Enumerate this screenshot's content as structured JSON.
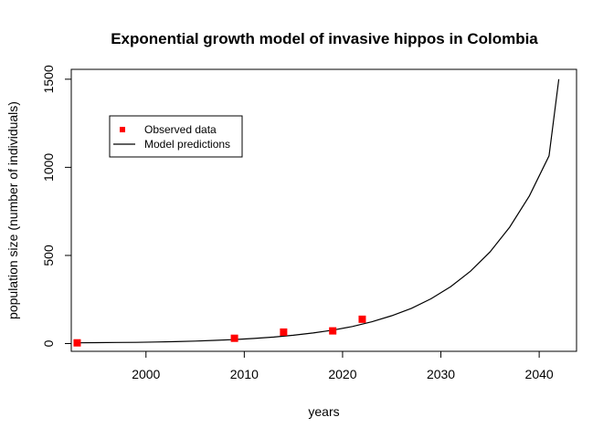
{
  "chart_data": {
    "type": "line",
    "title": "Exponential growth model of invasive hippos in Colombia",
    "xlabel": "years",
    "ylabel": "population size (number of individuals)",
    "xlim": [
      1992.4,
      2043.8
    ],
    "ylim": [
      -44,
      1556
    ],
    "x_ticks": [
      2000,
      2010,
      2020,
      2030,
      2040
    ],
    "y_ticks": [
      0,
      500,
      1000,
      1500
    ],
    "grid": false,
    "legend": {
      "position": "top-left",
      "entries": [
        {
          "label": "Observed data",
          "marker": "square",
          "color": "#ff0000"
        },
        {
          "label": "Model predictions",
          "marker": "line",
          "color": "#000000"
        }
      ]
    },
    "observed": {
      "name": "Observed data",
      "color": "#ff0000",
      "x": [
        1993,
        2009,
        2014,
        2019,
        2022
      ],
      "y": [
        4,
        30,
        65,
        72,
        138
      ]
    },
    "model": {
      "name": "Model predictions",
      "color": "#000000",
      "x": [
        1993,
        1995,
        1997,
        1999,
        2001,
        2003,
        2005,
        2007,
        2009,
        2011,
        2013,
        2015,
        2017,
        2019,
        2021,
        2023,
        2025,
        2027,
        2029,
        2031,
        2033,
        2035,
        2037,
        2039,
        2041,
        2042
      ],
      "y": [
        4,
        5,
        6,
        7,
        9,
        11,
        14,
        18,
        23,
        29,
        37,
        47,
        60,
        76,
        97,
        124,
        158,
        200,
        254,
        323,
        410,
        520,
        660,
        838,
        1065,
        1500
      ]
    }
  }
}
